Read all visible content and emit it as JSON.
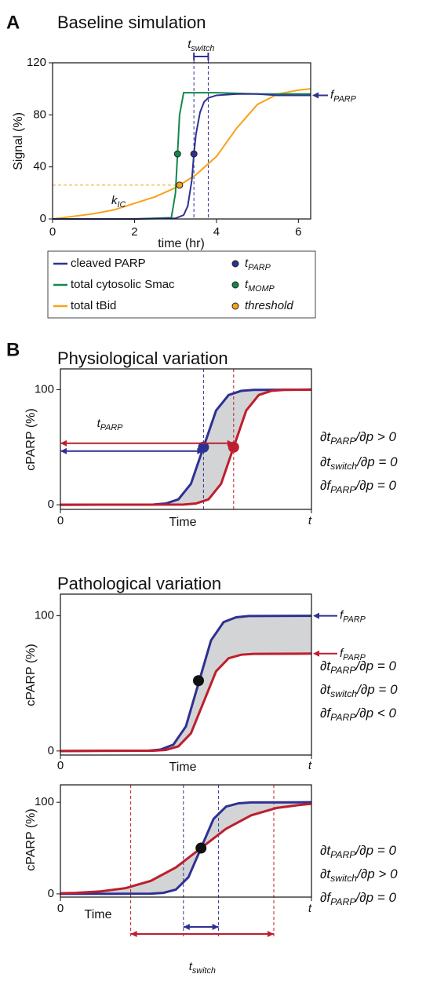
{
  "panel_labels": [
    "A",
    "B"
  ],
  "chart_data": [
    {
      "type": "line",
      "title": "Baseline simulation",
      "xlabel": "time (hr)",
      "ylabel": "Signal (%)",
      "xlim": [
        0,
        6.3
      ],
      "ylim": [
        0,
        120
      ],
      "xticks": [
        0,
        2,
        4,
        6
      ],
      "yticks": [
        0,
        40,
        80,
        120
      ],
      "series": [
        {
          "name": "cleaved PARP",
          "color": "#2e3192",
          "x": [
            0,
            1,
            2,
            3,
            3.2,
            3.3,
            3.4,
            3.45,
            3.5,
            3.6,
            3.7,
            3.8,
            4,
            4.5,
            5,
            5.5,
            6,
            6.3
          ],
          "values": [
            0,
            0,
            0,
            0.5,
            3,
            10,
            30,
            50,
            65,
            82,
            90,
            93,
            95,
            96,
            96,
            95,
            95,
            95
          ]
        },
        {
          "name": "total cytosolic Smac",
          "color": "#12894a",
          "x": [
            0,
            2,
            2.9,
            3.0,
            3.05,
            3.1,
            3.2,
            4,
            5,
            6,
            6.3
          ],
          "values": [
            0,
            0,
            1,
            20,
            50,
            80,
            97,
            97,
            96,
            96,
            96
          ]
        },
        {
          "name": "total tBid",
          "color": "#f7a21b",
          "x": [
            0,
            0.5,
            1,
            1.5,
            2,
            2.5,
            3,
            3.5,
            4,
            4.5,
            5,
            5.5,
            6,
            6.3
          ],
          "values": [
            0,
            2,
            4,
            7,
            12,
            17,
            24,
            34,
            48,
            70,
            88,
            96,
            99,
            100
          ]
        }
      ],
      "markers": [
        {
          "name": [
            "t",
            "PARP"
          ],
          "color": "#2e3192",
          "x": 3.45,
          "y": 50
        },
        {
          "name": [
            "t",
            "MOMP"
          ],
          "color": "#12894a",
          "x": 3.05,
          "y": 50
        },
        {
          "name": [
            "threshold"
          ],
          "color": "#f7a21b",
          "x": 3.1,
          "y": 26
        }
      ],
      "vlines": [
        {
          "x": 3.45,
          "color": "#2e3192"
        },
        {
          "x": 3.8,
          "color": "#2e3192"
        }
      ],
      "ranges": [
        {
          "label": [
            "t",
            "switch"
          ],
          "from": 3.45,
          "to": 3.8,
          "color": "#2e3192"
        }
      ],
      "annotations": [
        {
          "parts": [
            "f",
            "PARP"
          ],
          "color": "#2e3192"
        },
        {
          "parts": [
            "k",
            "IC"
          ],
          "color": "#000000"
        }
      ]
    },
    {
      "type": "line",
      "title": "Physiological variation",
      "xlabel": "Time",
      "ylabel": "cPARP (%)",
      "xlim": [
        0,
        10
      ],
      "ylim": [
        -4,
        118
      ],
      "xticks": [
        0,
        {
          "value": 10,
          "label": "t"
        }
      ],
      "yticks": [
        0,
        100
      ],
      "fill_between": "#d3d4d6",
      "series": [
        {
          "color": "#2e3192",
          "x": [
            0,
            3.7,
            4.2,
            4.7,
            5.2,
            5.7,
            6.2,
            6.7,
            7.2,
            7.7,
            10
          ],
          "values": [
            0,
            0.2,
            1.1,
            4.7,
            18.2,
            50,
            81.8,
            95.3,
            98.9,
            99.8,
            100
          ]
        },
        {
          "color": "#be1e2d",
          "x": [
            0,
            4.9,
            5.4,
            5.9,
            6.4,
            6.9,
            7.4,
            7.9,
            8.4,
            8.9,
            10
          ],
          "values": [
            0,
            0.2,
            1.1,
            4.7,
            18.2,
            50,
            81.8,
            95.3,
            98.9,
            99.8,
            100
          ]
        }
      ],
      "markers": [
        {
          "color": "#2e3192",
          "x": 5.7,
          "y": 50
        },
        {
          "color": "#be1e2d",
          "x": 6.9,
          "y": 50
        }
      ],
      "vlines": [
        {
          "x": 5.7,
          "color": "#2e3192"
        },
        {
          "x": 6.9,
          "color": "#be1e2d"
        }
      ],
      "ranges": [
        {
          "label": [
            "t",
            "PARP"
          ],
          "from": 0,
          "to": 6.9,
          "color": "#be1e2d"
        },
        {
          "from": 0,
          "to": 5.7,
          "color": "#2e3192"
        }
      ],
      "equations": [
        [
          "∂t",
          "PARP",
          "/∂p > 0"
        ],
        [
          "∂t",
          "switch",
          "/∂p = 0"
        ],
        [
          "∂f",
          "PARP",
          "/∂p = 0"
        ]
      ]
    },
    {
      "type": "line",
      "title": "Pathological variation",
      "xlabel": "Time",
      "ylabel": "cPARP (%)",
      "xlim": [
        0,
        10
      ],
      "ylim": [
        -3,
        116
      ],
      "xticks": [
        0,
        {
          "value": 10,
          "label": "t"
        }
      ],
      "yticks": [
        0,
        100
      ],
      "fill_between": "#d3d4d6",
      "series": [
        {
          "color": "#2e3192",
          "x": [
            0,
            3.5,
            4,
            4.5,
            5,
            5.5,
            6,
            6.5,
            7,
            7.5,
            10
          ],
          "values": [
            0,
            0.2,
            1.1,
            4.7,
            18.2,
            50,
            81.8,
            95.3,
            98.9,
            99.8,
            100
          ]
        },
        {
          "color": "#be1e2d",
          "x": [
            0,
            3.7,
            4.2,
            4.7,
            5.2,
            5.7,
            6.2,
            6.7,
            7.2,
            7.7,
            10
          ],
          "values": [
            0,
            0.2,
            0.8,
            3.4,
            13.1,
            36,
            58.9,
            68.6,
            71.2,
            71.8,
            72
          ]
        }
      ],
      "markers": [
        {
          "color": "#111111",
          "x": 5.5,
          "y": 52
        }
      ],
      "annotations": [
        {
          "parts": [
            "f",
            "PARP"
          ],
          "color": "#2e3192"
        },
        {
          "parts": [
            "f",
            "PARP"
          ],
          "color": "#be1e2d"
        }
      ],
      "equations": [
        [
          "∂t",
          "PARP",
          "/∂p = 0"
        ],
        [
          "∂t",
          "switch",
          "/∂p = 0"
        ],
        [
          "∂f",
          "PARP",
          "/∂p < 0"
        ]
      ]
    },
    {
      "type": "line",
      "xlabel": "Time",
      "ylabel": "cPARP (%)",
      "xlim": [
        0,
        10
      ],
      "ylim": [
        -3.5,
        119
      ],
      "xticks": [
        0,
        {
          "value": 10,
          "label": "t"
        }
      ],
      "yticks": [
        0,
        100
      ],
      "fill_between": "#d3d4d6",
      "series": [
        {
          "color": "#2e3192",
          "x": [
            0,
            3.6,
            4.1,
            4.6,
            5.1,
            5.6,
            6.1,
            6.6,
            7.1,
            7.6,
            10
          ],
          "values": [
            0,
            0.2,
            1.1,
            4.7,
            18.2,
            50,
            81.8,
            95.3,
            98.9,
            99.8,
            100
          ]
        },
        {
          "color": "#be1e2d",
          "x": [
            0,
            0.6,
            1.6,
            2.6,
            3.6,
            4.6,
            5.6,
            6.6,
            7.6,
            8.6,
            9.6,
            10
          ],
          "values": [
            0.7,
            1.1,
            2.7,
            6.3,
            14.2,
            28.9,
            50,
            71.1,
            85.8,
            93.7,
            97.3,
            98.3
          ]
        }
      ],
      "markers": [
        {
          "color": "#111111",
          "x": 5.6,
          "y": 50
        }
      ],
      "vlines": [
        {
          "x": 2.8,
          "color": "#be1e2d"
        },
        {
          "x": 8.5,
          "color": "#be1e2d"
        },
        {
          "x": 4.9,
          "color": "#2e3192"
        },
        {
          "x": 6.3,
          "color": "#2e3192"
        }
      ],
      "ranges": [
        {
          "label": [
            "t",
            "switch"
          ],
          "from": 2.8,
          "to": 8.5,
          "color": "#be1e2d"
        },
        {
          "from": 4.9,
          "to": 6.3,
          "color": "#2e3192"
        }
      ],
      "equations": [
        [
          "∂t",
          "PARP",
          "/∂p = 0"
        ],
        [
          "∂t",
          "switch",
          "/∂p > 0"
        ],
        [
          "∂f",
          "PARP",
          "/∂p = 0"
        ]
      ]
    }
  ]
}
